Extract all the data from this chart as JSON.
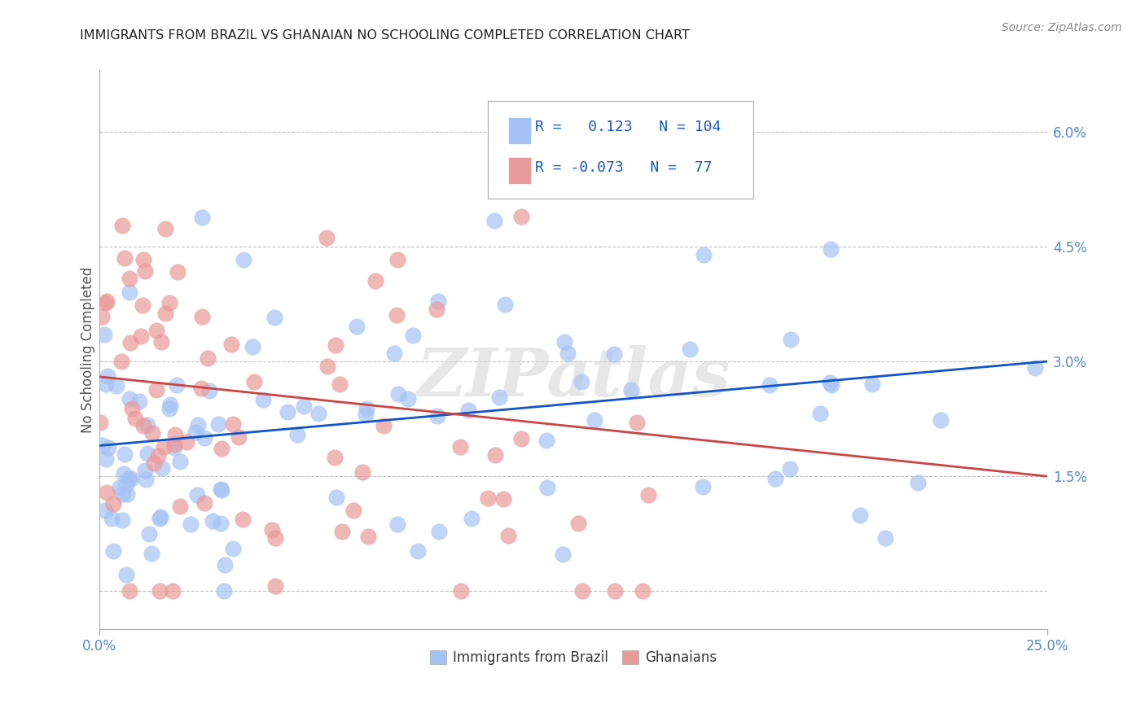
{
  "title": "IMMIGRANTS FROM BRAZIL VS GHANAIAN NO SCHOOLING COMPLETED CORRELATION CHART",
  "source": "Source: ZipAtlas.com",
  "ylabel": "No Schooling Completed",
  "xmin": 0.0,
  "xmax": 0.25,
  "ymin": -0.005,
  "ymax": 0.068,
  "yticks": [
    0.0,
    0.015,
    0.03,
    0.045,
    0.06
  ],
  "ytick_labels": [
    "",
    "1.5%",
    "3.0%",
    "4.5%",
    "6.0%"
  ],
  "xticks": [
    0.0,
    0.25
  ],
  "xtick_labels": [
    "0.0%",
    "25.0%"
  ],
  "blue_color": "#a4c2f4",
  "pink_color": "#ea9999",
  "trend_blue": "#1155cc",
  "trend_pink": "#cc4444",
  "R_blue": 0.123,
  "N_blue": 104,
  "R_pink": -0.073,
  "N_pink": 77,
  "legend_labels": [
    "Immigrants from Brazil",
    "Ghanaians"
  ],
  "watermark": "ZIPatlas",
  "background_color": "#ffffff",
  "grid_color": "#c0c0c0",
  "title_color": "#222222",
  "seed_blue": 42,
  "seed_pink": 7
}
